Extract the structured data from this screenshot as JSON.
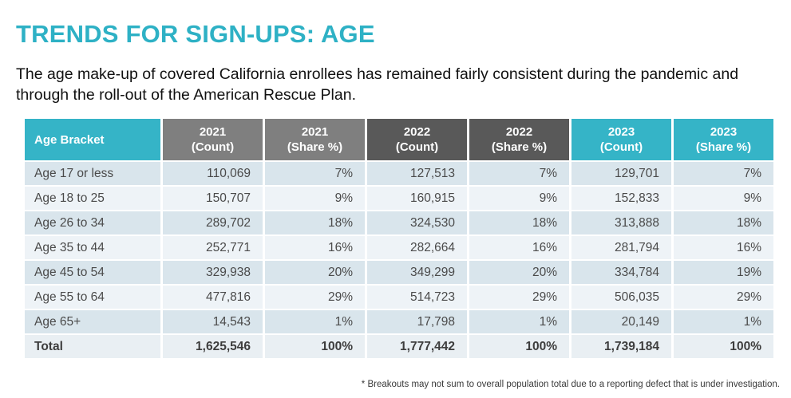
{
  "page": {
    "title": "TRENDS FOR SIGN-UPS: AGE",
    "subtitle": "The age make-up of covered California enrollees has remained fairly consistent during the pandemic and through the roll-out of the American Rescue Plan.",
    "footnote": "* Breakouts may not sum to overall population total due to a reporting defect that is under investigation."
  },
  "colors": {
    "accent_teal": "#35b4c7",
    "title_teal": "#2eb1c5",
    "header_gray_2021": "#7f7f7f",
    "header_gray_2022": "#595959",
    "row_odd": "#d9e5ec",
    "row_even": "#eef3f7",
    "row_total": "#e9eff3"
  },
  "table": {
    "columns": [
      {
        "line1": "Age Bracket",
        "line2": "",
        "theme": "teal"
      },
      {
        "line1": "2021",
        "line2": "(Count)",
        "theme": "gray2021"
      },
      {
        "line1": "2021",
        "line2": "(Share %)",
        "theme": "gray2021"
      },
      {
        "line1": "2022",
        "line2": "(Count)",
        "theme": "gray2022"
      },
      {
        "line1": "2022",
        "line2": "(Share %)",
        "theme": "gray2022"
      },
      {
        "line1": "2023",
        "line2": "(Count)",
        "theme": "teal"
      },
      {
        "line1": "2023",
        "line2": "(Share %)",
        "theme": "teal"
      }
    ],
    "rows": [
      {
        "bracket": "Age 17 or less",
        "values": [
          "110,069",
          "7%",
          "127,513",
          "7%",
          "129,701",
          "7%"
        ]
      },
      {
        "bracket": "Age 18 to 25",
        "values": [
          "150,707",
          "9%",
          "160,915",
          "9%",
          "152,833",
          "9%"
        ]
      },
      {
        "bracket": "Age 26 to 34",
        "values": [
          "289,702",
          "18%",
          "324,530",
          "18%",
          "313,888",
          "18%"
        ]
      },
      {
        "bracket": "Age 35 to 44",
        "values": [
          "252,771",
          "16%",
          "282,664",
          "16%",
          "281,794",
          "16%"
        ]
      },
      {
        "bracket": "Age 45 to 54",
        "values": [
          "329,938",
          "20%",
          "349,299",
          "20%",
          "334,784",
          "19%"
        ]
      },
      {
        "bracket": "Age 55 to 64",
        "values": [
          "477,816",
          "29%",
          "514,723",
          "29%",
          "506,035",
          "29%"
        ]
      },
      {
        "bracket": "Age 65+",
        "values": [
          "14,543",
          "1%",
          "17,798",
          "1%",
          "20,149",
          "1%"
        ]
      }
    ],
    "total": {
      "bracket": "Total",
      "values": [
        "1,625,546",
        "100%",
        "1,777,442",
        "100%",
        "1,739,184",
        "100%"
      ]
    }
  },
  "chart_data": {
    "type": "table",
    "title": "TRENDS FOR SIGN-UPS: AGE",
    "categories": [
      "Age 17 or less",
      "Age 18 to 25",
      "Age 26 to 34",
      "Age 35 to 44",
      "Age 45 to 54",
      "Age 55 to 64",
      "Age 65+",
      "Total"
    ],
    "series": [
      {
        "name": "2021 (Count)",
        "values": [
          110069,
          150707,
          289702,
          252771,
          329938,
          477816,
          14543,
          1625546
        ]
      },
      {
        "name": "2021 (Share %)",
        "values": [
          7,
          9,
          18,
          16,
          20,
          29,
          1,
          100
        ]
      },
      {
        "name": "2022 (Count)",
        "values": [
          127513,
          160915,
          324530,
          282664,
          349299,
          514723,
          17798,
          1777442
        ]
      },
      {
        "name": "2022 (Share %)",
        "values": [
          7,
          9,
          18,
          16,
          20,
          29,
          1,
          100
        ]
      },
      {
        "name": "2023 (Count)",
        "values": [
          129701,
          152833,
          313888,
          281794,
          334784,
          506035,
          20149,
          1739184
        ]
      },
      {
        "name": "2023 (Share %)",
        "values": [
          7,
          9,
          18,
          16,
          19,
          29,
          1,
          100
        ]
      }
    ]
  }
}
